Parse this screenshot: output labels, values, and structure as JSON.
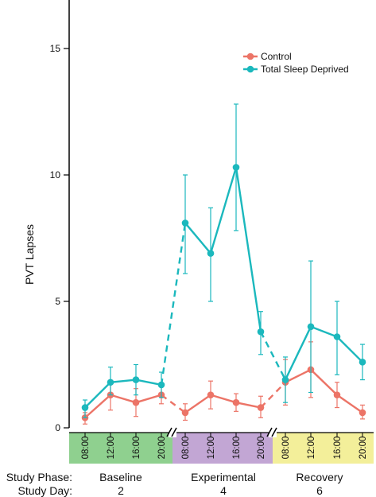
{
  "chart_data": {
    "type": "line",
    "ylabel": "PVT Lapses",
    "ylim": [
      0,
      17
    ],
    "yticks": [
      0,
      5,
      10,
      15
    ],
    "x_time_labels": [
      "08:00",
      "12:00",
      "16:00",
      "20:00",
      "08:00",
      "12:00",
      "16:00",
      "20:00",
      "08:00",
      "12:00",
      "16:00",
      "20:00"
    ],
    "series": [
      {
        "name": "Control",
        "color": "#ec7467",
        "values": [
          0.4,
          1.3,
          1.0,
          1.3,
          0.6,
          1.3,
          1.0,
          0.8,
          1.8,
          2.3,
          1.3,
          0.6
        ],
        "err_low": [
          0.15,
          0.7,
          0.45,
          0.95,
          0.3,
          0.75,
          0.65,
          0.4,
          0.9,
          1.2,
          0.8,
          0.35
        ],
        "err_high": [
          0.6,
          1.85,
          1.55,
          1.65,
          0.95,
          1.85,
          1.35,
          1.25,
          2.7,
          3.4,
          1.8,
          0.9
        ]
      },
      {
        "name": "Total Sleep Deprived",
        "color": "#1bb8bd",
        "values": [
          0.8,
          1.8,
          1.9,
          1.7,
          8.1,
          6.9,
          10.3,
          3.8,
          1.9,
          4.0,
          3.6,
          2.6
        ],
        "err_low": [
          0.4,
          1.3,
          1.3,
          1.2,
          6.1,
          5.0,
          7.8,
          2.9,
          1.0,
          1.4,
          2.1,
          1.9
        ],
        "err_high": [
          1.1,
          2.4,
          2.5,
          2.2,
          10.0,
          8.7,
          12.8,
          4.6,
          2.8,
          6.6,
          5.0,
          3.3
        ]
      }
    ],
    "phases": [
      {
        "name": "Baseline",
        "day": "2",
        "color": "#8fd08f"
      },
      {
        "name": "Experimental",
        "day": "4",
        "color": "#c2a6d4"
      },
      {
        "name": "Recovery",
        "day": "6",
        "color": "#f3ef9a"
      }
    ],
    "row_labels": {
      "phase": "Study Phase:",
      "day": "Study Day:"
    },
    "legend_position": "top-right",
    "grid": false
  }
}
